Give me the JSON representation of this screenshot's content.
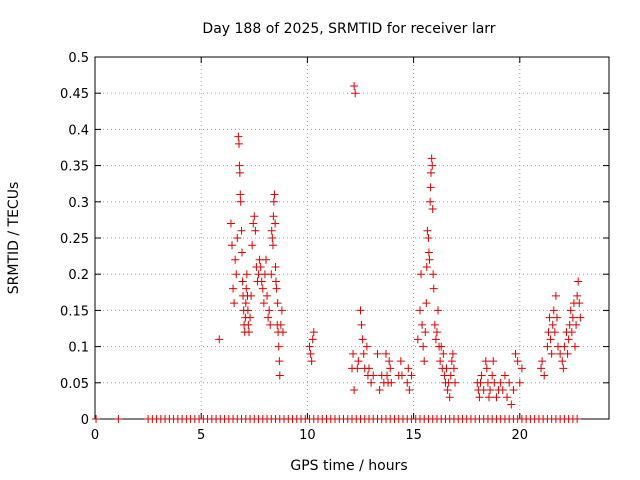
{
  "chart_data": {
    "type": "scatter",
    "title": "Day 188 of 2025, SRMTID for receiver larr",
    "xlabel": "GPS time / hours",
    "ylabel": "SRMTID / TECUs",
    "xlim": [
      0,
      24.2
    ],
    "ylim": [
      0,
      0.5
    ],
    "grid": true,
    "marker": "+",
    "color": "#e00000",
    "x_ticks": [
      0,
      5,
      10,
      15,
      20
    ],
    "x_tick_labels": [
      "0",
      "5",
      "10",
      "15",
      "20"
    ],
    "y_ticks": [
      0,
      0.05,
      0.1,
      0.15,
      0.2,
      0.25,
      0.3,
      0.35,
      0.4,
      0.45,
      0.5
    ],
    "y_tick_labels": [
      "0",
      "0.05",
      "0.1",
      "0.15",
      "0.2",
      "0.25",
      "0.3",
      "0.35",
      "0.4",
      "0.45",
      "0.5"
    ],
    "series": [
      {
        "name": "SRMTID",
        "points": [
          [
            0.05,
            0
          ],
          [
            1.1,
            0
          ],
          [
            2.5,
            0
          ],
          [
            2.7,
            0
          ],
          [
            2.9,
            0
          ],
          [
            3.1,
            0
          ],
          [
            3.3,
            0
          ],
          [
            3.5,
            0
          ],
          [
            3.7,
            0
          ],
          [
            3.9,
            0
          ],
          [
            4.1,
            0
          ],
          [
            4.3,
            0
          ],
          [
            4.5,
            0
          ],
          [
            4.7,
            0
          ],
          [
            4.9,
            0
          ],
          [
            5.1,
            0
          ],
          [
            5.3,
            0
          ],
          [
            5.5,
            0
          ],
          [
            5.7,
            0
          ],
          [
            5.9,
            0
          ],
          [
            6.1,
            0
          ],
          [
            6.3,
            0
          ],
          [
            6.5,
            0
          ],
          [
            6.7,
            0
          ],
          [
            6.9,
            0
          ],
          [
            7.1,
            0
          ],
          [
            7.3,
            0
          ],
          [
            7.5,
            0
          ],
          [
            7.7,
            0
          ],
          [
            7.9,
            0
          ],
          [
            8.1,
            0
          ],
          [
            8.3,
            0
          ],
          [
            8.5,
            0
          ],
          [
            8.7,
            0
          ],
          [
            8.9,
            0
          ],
          [
            9.1,
            0
          ],
          [
            9.3,
            0
          ],
          [
            9.5,
            0
          ],
          [
            9.7,
            0
          ],
          [
            9.9,
            0
          ],
          [
            10.1,
            0
          ],
          [
            10.3,
            0
          ],
          [
            10.5,
            0
          ],
          [
            10.7,
            0
          ],
          [
            10.9,
            0
          ],
          [
            11.1,
            0
          ],
          [
            11.3,
            0
          ],
          [
            11.5,
            0
          ],
          [
            11.7,
            0
          ],
          [
            11.9,
            0
          ],
          [
            12.1,
            0
          ],
          [
            12.3,
            0
          ],
          [
            12.5,
            0
          ],
          [
            12.7,
            0
          ],
          [
            12.9,
            0
          ],
          [
            13.1,
            0
          ],
          [
            13.3,
            0
          ],
          [
            13.5,
            0
          ],
          [
            13.7,
            0
          ],
          [
            13.9,
            0
          ],
          [
            14.1,
            0
          ],
          [
            14.3,
            0
          ],
          [
            14.5,
            0
          ],
          [
            14.7,
            0
          ],
          [
            14.9,
            0
          ],
          [
            15.1,
            0
          ],
          [
            15.3,
            0
          ],
          [
            15.5,
            0
          ],
          [
            15.7,
            0
          ],
          [
            15.9,
            0
          ],
          [
            16.1,
            0
          ],
          [
            16.3,
            0
          ],
          [
            16.5,
            0
          ],
          [
            16.7,
            0
          ],
          [
            16.9,
            0
          ],
          [
            17.1,
            0
          ],
          [
            17.3,
            0
          ],
          [
            17.5,
            0
          ],
          [
            17.7,
            0
          ],
          [
            17.9,
            0
          ],
          [
            18.1,
            0
          ],
          [
            18.3,
            0
          ],
          [
            18.5,
            0
          ],
          [
            18.7,
            0
          ],
          [
            18.9,
            0
          ],
          [
            19.1,
            0
          ],
          [
            19.3,
            0
          ],
          [
            19.5,
            0
          ],
          [
            19.7,
            0
          ],
          [
            19.9,
            0
          ],
          [
            20.1,
            0
          ],
          [
            20.3,
            0
          ],
          [
            20.5,
            0
          ],
          [
            20.7,
            0
          ],
          [
            20.9,
            0
          ],
          [
            21.1,
            0
          ],
          [
            21.3,
            0
          ],
          [
            21.5,
            0
          ],
          [
            21.7,
            0
          ],
          [
            21.9,
            0
          ],
          [
            22.1,
            0
          ],
          [
            22.3,
            0
          ],
          [
            22.5,
            0
          ],
          [
            22.7,
            0
          ],
          [
            5.85,
            0.11
          ],
          [
            6.4,
            0.27
          ],
          [
            6.45,
            0.24
          ],
          [
            6.5,
            0.18
          ],
          [
            6.55,
            0.16
          ],
          [
            6.6,
            0.22
          ],
          [
            6.65,
            0.2
          ],
          [
            6.7,
            0.25
          ],
          [
            6.75,
            0.39
          ],
          [
            6.78,
            0.38
          ],
          [
            6.8,
            0.35
          ],
          [
            6.82,
            0.34
          ],
          [
            6.84,
            0.31
          ],
          [
            6.86,
            0.3
          ],
          [
            6.9,
            0.26
          ],
          [
            6.92,
            0.23
          ],
          [
            6.95,
            0.19
          ],
          [
            6.97,
            0.17
          ],
          [
            7.0,
            0.15
          ],
          [
            7.02,
            0.13
          ],
          [
            7.05,
            0.12
          ],
          [
            7.08,
            0.14
          ],
          [
            7.1,
            0.16
          ],
          [
            7.12,
            0.18
          ],
          [
            7.15,
            0.2
          ],
          [
            7.18,
            0.17
          ],
          [
            7.2,
            0.15
          ],
          [
            7.22,
            0.13
          ],
          [
            7.25,
            0.12
          ],
          [
            7.3,
            0.14
          ],
          [
            7.35,
            0.17
          ],
          [
            7.4,
            0.24
          ],
          [
            7.45,
            0.27
          ],
          [
            7.5,
            0.28
          ],
          [
            7.55,
            0.26
          ],
          [
            7.6,
            0.21
          ],
          [
            7.65,
            0.19
          ],
          [
            7.7,
            0.2
          ],
          [
            7.75,
            0.22
          ],
          [
            7.8,
            0.21
          ],
          [
            7.85,
            0.19
          ],
          [
            7.9,
            0.18
          ],
          [
            7.95,
            0.16
          ],
          [
            8.0,
            0.2
          ],
          [
            8.05,
            0.22
          ],
          [
            8.1,
            0.17
          ],
          [
            8.15,
            0.14
          ],
          [
            8.2,
            0.15
          ],
          [
            8.25,
            0.13
          ],
          [
            8.3,
            0.2
          ],
          [
            8.32,
            0.26
          ],
          [
            8.35,
            0.25
          ],
          [
            8.38,
            0.24
          ],
          [
            8.4,
            0.28
          ],
          [
            8.42,
            0.3
          ],
          [
            8.45,
            0.31
          ],
          [
            8.48,
            0.27
          ],
          [
            8.5,
            0.21
          ],
          [
            8.52,
            0.19
          ],
          [
            8.55,
            0.18
          ],
          [
            8.58,
            0.13
          ],
          [
            8.6,
            0.16
          ],
          [
            8.62,
            0.12
          ],
          [
            8.65,
            0.1
          ],
          [
            8.68,
            0.08
          ],
          [
            8.7,
            0.06
          ],
          [
            8.75,
            0.13
          ],
          [
            8.8,
            0.15
          ],
          [
            8.85,
            0.12
          ],
          [
            10.1,
            0.1
          ],
          [
            10.15,
            0.09
          ],
          [
            10.2,
            0.08
          ],
          [
            10.25,
            0.11
          ],
          [
            10.3,
            0.12
          ],
          [
            12.2,
            0.46
          ],
          [
            12.25,
            0.45
          ],
          [
            12.1,
            0.07
          ],
          [
            12.15,
            0.09
          ],
          [
            12.2,
            0.04
          ],
          [
            12.35,
            0.07
          ],
          [
            12.4,
            0.08
          ],
          [
            12.5,
            0.15
          ],
          [
            12.55,
            0.13
          ],
          [
            12.6,
            0.11
          ],
          [
            12.65,
            0.09
          ],
          [
            12.7,
            0.07
          ],
          [
            12.8,
            0.1
          ],
          [
            12.85,
            0.06
          ],
          [
            12.9,
            0.07
          ],
          [
            13.0,
            0.05
          ],
          [
            13.1,
            0.06
          ],
          [
            13.3,
            0.09
          ],
          [
            13.4,
            0.04
          ],
          [
            13.5,
            0.06
          ],
          [
            13.6,
            0.05
          ],
          [
            13.7,
            0.09
          ],
          [
            13.75,
            0.06
          ],
          [
            13.8,
            0.05
          ],
          [
            13.85,
            0.08
          ],
          [
            13.9,
            0.07
          ],
          [
            13.95,
            0.05
          ],
          [
            14.3,
            0.06
          ],
          [
            14.4,
            0.08
          ],
          [
            14.45,
            0.06
          ],
          [
            14.7,
            0.05
          ],
          [
            14.75,
            0.07
          ],
          [
            14.8,
            0.04
          ],
          [
            14.9,
            0.06
          ],
          [
            15.2,
            0.11
          ],
          [
            15.3,
            0.15
          ],
          [
            15.35,
            0.2
          ],
          [
            15.4,
            0.13
          ],
          [
            15.45,
            0.1
          ],
          [
            15.5,
            0.08
          ],
          [
            15.55,
            0.12
          ],
          [
            15.6,
            0.16
          ],
          [
            15.62,
            0.21
          ],
          [
            15.65,
            0.26
          ],
          [
            15.7,
            0.25
          ],
          [
            15.72,
            0.23
          ],
          [
            15.75,
            0.22
          ],
          [
            15.78,
            0.3
          ],
          [
            15.8,
            0.32
          ],
          [
            15.82,
            0.34
          ],
          [
            15.85,
            0.36
          ],
          [
            15.88,
            0.35
          ],
          [
            15.9,
            0.29
          ],
          [
            15.92,
            0.2
          ],
          [
            15.95,
            0.18
          ],
          [
            16.0,
            0.13
          ],
          [
            16.05,
            0.11
          ],
          [
            16.1,
            0.12
          ],
          [
            16.15,
            0.15
          ],
          [
            16.2,
            0.1
          ],
          [
            16.25,
            0.08
          ],
          [
            16.3,
            0.1
          ],
          [
            16.35,
            0.07
          ],
          [
            16.4,
            0.09
          ],
          [
            16.45,
            0.06
          ],
          [
            16.5,
            0.05
          ],
          [
            16.55,
            0.07
          ],
          [
            16.6,
            0.04
          ],
          [
            16.65,
            0.05
          ],
          [
            16.7,
            0.03
          ],
          [
            16.75,
            0.06
          ],
          [
            16.8,
            0.08
          ],
          [
            16.85,
            0.09
          ],
          [
            16.9,
            0.07
          ],
          [
            16.95,
            0.05
          ],
          [
            18.0,
            0.05
          ],
          [
            18.05,
            0.04
          ],
          [
            18.1,
            0.03
          ],
          [
            18.15,
            0.05
          ],
          [
            18.2,
            0.06
          ],
          [
            18.3,
            0.04
          ],
          [
            18.4,
            0.08
          ],
          [
            18.45,
            0.07
          ],
          [
            18.5,
            0.05
          ],
          [
            18.55,
            0.03
          ],
          [
            18.6,
            0.04
          ],
          [
            18.7,
            0.06
          ],
          [
            18.75,
            0.08
          ],
          [
            18.8,
            0.05
          ],
          [
            18.9,
            0.03
          ],
          [
            19.0,
            0.04
          ],
          [
            19.1,
            0.05
          ],
          [
            19.2,
            0.04
          ],
          [
            19.3,
            0.06
          ],
          [
            19.4,
            0.03
          ],
          [
            19.5,
            0.05
          ],
          [
            19.6,
            0.02
          ],
          [
            19.7,
            0.04
          ],
          [
            19.8,
            0.09
          ],
          [
            19.9,
            0.08
          ],
          [
            20.0,
            0.05
          ],
          [
            20.1,
            0.07
          ],
          [
            21.0,
            0.07
          ],
          [
            21.05,
            0.08
          ],
          [
            21.15,
            0.06
          ],
          [
            21.3,
            0.1
          ],
          [
            21.35,
            0.12
          ],
          [
            21.4,
            0.14
          ],
          [
            21.45,
            0.11
          ],
          [
            21.5,
            0.09
          ],
          [
            21.55,
            0.13
          ],
          [
            21.6,
            0.15
          ],
          [
            21.65,
            0.12
          ],
          [
            21.7,
            0.17
          ],
          [
            21.75,
            0.14
          ],
          [
            21.8,
            0.1
          ],
          [
            21.9,
            0.09
          ],
          [
            22.0,
            0.08
          ],
          [
            22.05,
            0.07
          ],
          [
            22.1,
            0.1
          ],
          [
            22.2,
            0.12
          ],
          [
            22.25,
            0.09
          ],
          [
            22.3,
            0.11
          ],
          [
            22.35,
            0.13
          ],
          [
            22.4,
            0.15
          ],
          [
            22.45,
            0.12
          ],
          [
            22.5,
            0.14
          ],
          [
            22.55,
            0.16
          ],
          [
            22.6,
            0.1
          ],
          [
            22.65,
            0.13
          ],
          [
            22.7,
            0.17
          ],
          [
            22.75,
            0.19
          ],
          [
            22.8,
            0.16
          ],
          [
            22.85,
            0.14
          ]
        ]
      }
    ]
  }
}
